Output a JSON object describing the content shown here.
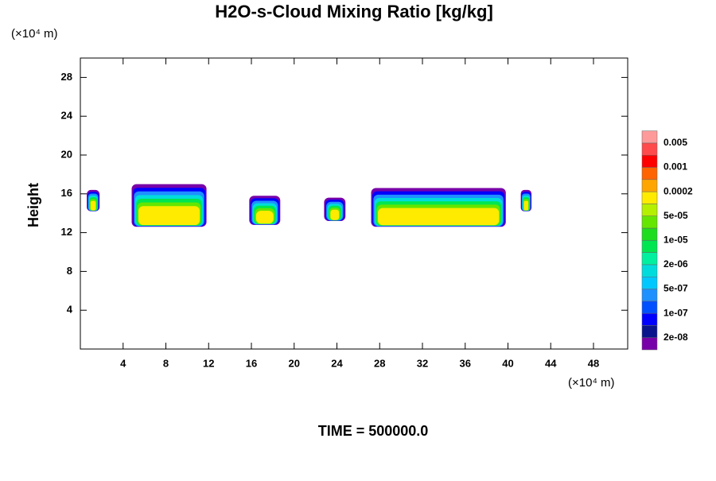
{
  "chart_data": {
    "type": "contour",
    "title": "H2O-s-Cloud Mixing Ratio [kg/kg]",
    "ylabel": "Height",
    "y_unit": "(×10⁴ m)",
    "x_unit": "(×10⁴ m)",
    "footer": "TIME = 500000.0",
    "xlim": [
      0,
      51.2
    ],
    "ylim": [
      0,
      30
    ],
    "xticks": [
      4,
      8,
      12,
      16,
      20,
      24,
      28,
      32,
      36,
      40,
      44,
      48
    ],
    "yticks": [
      4,
      8,
      12,
      16,
      20,
      24,
      28
    ],
    "clouds": [
      {
        "x": [
          0.6,
          1.8
        ],
        "y": [
          14.2,
          16.4
        ]
      },
      {
        "x": [
          4.8,
          11.8
        ],
        "y": [
          12.6,
          17
        ]
      },
      {
        "x": [
          15.8,
          18.7
        ],
        "y": [
          12.8,
          15.8
        ]
      },
      {
        "x": [
          22.8,
          24.8
        ],
        "y": [
          13.2,
          15.6
        ]
      },
      {
        "x": [
          27.2,
          39.8
        ],
        "y": [
          12.6,
          16.6
        ]
      },
      {
        "x": [
          41.2,
          42.2
        ],
        "y": [
          14.2,
          16.4
        ]
      }
    ],
    "colorbar": {
      "colors": [
        "#7800a8",
        "#0a148c",
        "#0000ff",
        "#0050ff",
        "#1e90ff",
        "#00c8ff",
        "#00dcdc",
        "#00f0a0",
        "#00e650",
        "#1edc1e",
        "#64e600",
        "#b4f000",
        "#ffeb00",
        "#ffa500",
        "#ff6400",
        "#ff0000",
        "#ff4b4b",
        "#ff9a9a"
      ],
      "labels": [
        "2e-08",
        "1e-07",
        "5e-07",
        "2e-06",
        "1e-05",
        "5e-05",
        "0.0002",
        "0.001",
        "0.005"
      ]
    }
  }
}
